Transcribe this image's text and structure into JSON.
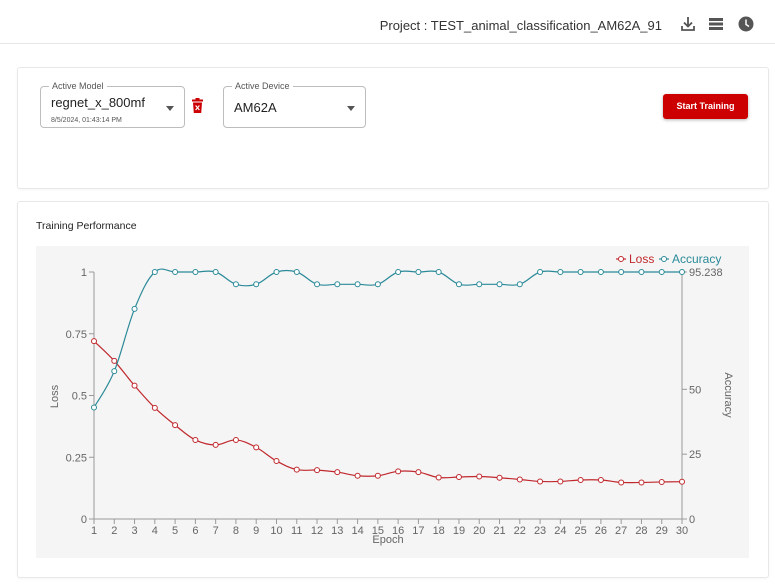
{
  "header": {
    "project_label": "Project : TEST_animal_classification_AM62A_91",
    "icons": [
      "download-icon",
      "list-icon",
      "clock-icon"
    ]
  },
  "model_select": {
    "legend": "Active Model",
    "value": "regnet_x_800mf",
    "timestamp": "8/5/2024, 01:43:14 PM"
  },
  "device_select": {
    "legend": "Active Device",
    "value": "AM62A"
  },
  "actions": {
    "start_training_label": "Start Training"
  },
  "performance": {
    "title": "Training Performance"
  },
  "colors": {
    "brand_red": "#cc0000",
    "loss": "#c0282d",
    "accuracy": "#2b8a99"
  },
  "chart_data": {
    "type": "line",
    "xlabel": "Epoch",
    "ylabel_left": "Loss",
    "ylabel_right": "Accuracy",
    "x": [
      1,
      2,
      3,
      4,
      5,
      6,
      7,
      8,
      9,
      10,
      11,
      12,
      13,
      14,
      15,
      16,
      17,
      18,
      19,
      20,
      21,
      22,
      23,
      24,
      25,
      26,
      27,
      28,
      29,
      30
    ],
    "y_left_ticks": [
      "0",
      "0.25",
      "0.5",
      "0.75",
      "1"
    ],
    "y_left_range": [
      0,
      1
    ],
    "y_right_ticks": [
      "0",
      "25",
      "50",
      "95.238"
    ],
    "y_right_range": [
      0,
      95.238
    ],
    "legend_position": "top-right",
    "series": [
      {
        "name": "Loss",
        "axis": "left",
        "values": [
          0.72,
          0.64,
          0.54,
          0.45,
          0.38,
          0.32,
          0.3,
          0.32,
          0.29,
          0.235,
          0.2,
          0.198,
          0.19,
          0.175,
          0.175,
          0.193,
          0.19,
          0.168,
          0.17,
          0.172,
          0.167,
          0.16,
          0.152,
          0.152,
          0.158,
          0.158,
          0.148,
          0.148,
          0.15,
          0.151
        ]
      },
      {
        "name": "Accuracy",
        "axis": "right",
        "values": [
          43,
          57,
          81,
          95.238,
          95.238,
          95.238,
          95.238,
          90.5,
          90.5,
          95.238,
          95.238,
          90.5,
          90.5,
          90.5,
          90.5,
          95.238,
          95.238,
          95.238,
          90.5,
          90.5,
          90.5,
          90.5,
          95.238,
          95.238,
          95.238,
          95.238,
          95.238,
          95.238,
          95.238,
          95.238
        ]
      }
    ]
  }
}
